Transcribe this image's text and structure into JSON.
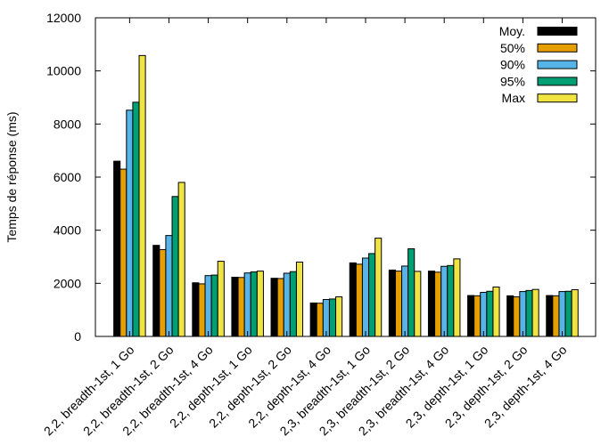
{
  "chart_data": {
    "type": "bar",
    "title": "",
    "xlabel": "",
    "ylabel": "Temps de réponse (ms)",
    "ylim": [
      0,
      12000
    ],
    "yticks": [
      0,
      2000,
      4000,
      6000,
      8000,
      10000,
      12000
    ],
    "legend_position": "top-right",
    "grid": false,
    "categories": [
      "2,2, breadth-1st, 1 Go",
      "2,2, breadth-1st, 2 Go",
      "2,2, breadth-1st, 4 Go",
      "2,2, depth-1st, 1 Go",
      "2,2, depth-1st, 2 Go",
      "2,2, depth-1st, 4 Go",
      "2,3, breadth-1st, 1 Go",
      "2,3, breadth-1st, 2 Go",
      "2,3, breadth-1st, 4 Go",
      "2,3, depth-1st, 1 Go",
      "2,3, depth-1st, 2 Go",
      "2,3, depth-1st, 4 Go"
    ],
    "series": [
      {
        "name": "Moy.",
        "color": "#000000",
        "values": [
          6600,
          3430,
          2020,
          2230,
          2190,
          1260,
          2770,
          2500,
          2460,
          1540,
          1530,
          1540
        ]
      },
      {
        "name": "50%",
        "color": "#e69f00",
        "values": [
          6300,
          3270,
          1980,
          2220,
          2180,
          1250,
          2720,
          2460,
          2420,
          1530,
          1490,
          1530
        ]
      },
      {
        "name": "90%",
        "color": "#56b4e9",
        "values": [
          8520,
          3800,
          2290,
          2390,
          2380,
          1390,
          2950,
          2650,
          2640,
          1660,
          1690,
          1690
        ]
      },
      {
        "name": "95%",
        "color": "#009e73",
        "values": [
          8820,
          5270,
          2310,
          2430,
          2440,
          1410,
          3120,
          3300,
          2670,
          1700,
          1730,
          1700
        ]
      },
      {
        "name": "Max",
        "color": "#f0e442",
        "values": [
          10580,
          5800,
          2830,
          2460,
          2800,
          1490,
          3700,
          2450,
          2920,
          1860,
          1770,
          1760
        ]
      }
    ]
  }
}
